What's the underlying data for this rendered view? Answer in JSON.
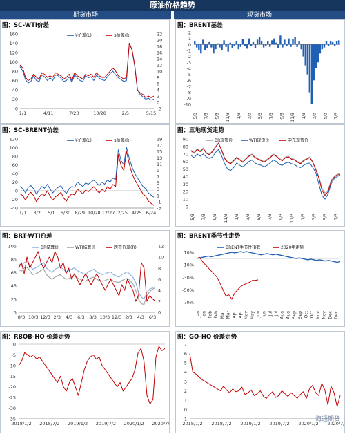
{
  "header": {
    "title": "原油价格趋势",
    "left_section": "期货市场",
    "right_section": "现货市场"
  },
  "watermark": "海通期货",
  "colors": {
    "red": "#c00000",
    "blue": "#1f5fb4",
    "navy": "#17365d",
    "gray": "#a6a6a6",
    "lightblue": "#8fb3e0",
    "darkred": "#7f0000"
  },
  "chart_data": [
    {
      "id": "sc-wti",
      "type": "line",
      "title": "图：SC-WTI价差",
      "legend": [
        "¥价差(L)",
        "$价差(R)"
      ],
      "x_ticks": [
        "1/1",
        "4/11",
        "7/20",
        "10/28",
        "2/5",
        "5/15"
      ],
      "y_left_ticks": [
        "0",
        "20",
        "40",
        "60",
        "80",
        "100",
        "120",
        "140",
        "160"
      ],
      "y_right_ticks": [
        "-2",
        "0",
        "2",
        "4",
        "6",
        "8",
        "10",
        "12",
        "14",
        "16",
        "18",
        "20",
        "22"
      ],
      "ylim_left": [
        0,
        160
      ],
      "ylim_right": [
        -2,
        22
      ],
      "series": [
        {
          "name": "¥价差(L)",
          "axis": "left",
          "values": [
            90,
            80,
            62,
            55,
            58,
            70,
            60,
            58,
            72,
            68,
            60,
            66,
            60,
            72,
            70,
            65,
            58,
            60,
            68,
            56,
            72,
            65,
            60,
            58,
            70,
            66,
            68,
            60,
            72,
            65,
            62,
            60,
            68,
            75,
            80,
            72,
            66,
            62,
            58,
            60,
            140,
            125,
            90,
            40,
            30,
            25,
            20,
            22,
            18,
            20
          ]
        },
        {
          "name": "$价差(R)",
          "axis": "right",
          "values": [
            12,
            11,
            8,
            7,
            7.5,
            9,
            8,
            7.5,
            9.5,
            9,
            8,
            8.5,
            8,
            9.5,
            9,
            8.5,
            7.5,
            8,
            9,
            7,
            9.5,
            8.5,
            8,
            7.5,
            9,
            8.5,
            9,
            8,
            9.5,
            8.5,
            8,
            8,
            9,
            10,
            11,
            10,
            8.5,
            8,
            7.5,
            8,
            19,
            17,
            12,
            4,
            3,
            2.5,
            1.5,
            2,
            1.5,
            2
          ]
        }
      ]
    },
    {
      "id": "brent-basis",
      "type": "bar",
      "title": "图：BRENT基差",
      "x_ticks": [
        "5/3",
        "7/3",
        "9/3",
        "11/3",
        "1/3",
        "3/3",
        "5/3",
        "7/3",
        "9/3",
        "11/3",
        "1/3",
        "3/3",
        "5/3",
        "7/3"
      ],
      "y_ticks": [
        "2",
        "1",
        "0",
        "-1",
        "-2",
        "-3",
        "-4",
        "-5",
        "-6",
        "-7",
        "-8",
        "-9",
        "-10"
      ],
      "ylim": [
        -10,
        2
      ],
      "values": [
        0.5,
        -0.5,
        -1,
        -1.5,
        0.8,
        -1,
        -0.6,
        0.4,
        -0.5,
        -1.5,
        -0.8,
        0.2,
        -0.5,
        -1,
        0.7,
        -0.4,
        -1.2,
        0.3,
        -0.6,
        -0.3,
        0.6,
        -0.8,
        -0.4,
        0.9,
        -0.2,
        -0.7,
        1.0,
        -0.3,
        0.4,
        -0.6,
        0.8,
        1.2,
        0.5,
        -0.5,
        -0.3,
        0.6,
        -0.4,
        0.7,
        1.0,
        0.3,
        -0.6,
        1.5,
        -0.5,
        0.8,
        -0.3,
        1.0,
        -0.4,
        0.9,
        1.3,
        -0.4,
        0.5,
        -0.8,
        -2,
        -3.5,
        -5,
        -8,
        -10,
        -6,
        -4,
        -3,
        -1.5,
        -0.8,
        -0.5,
        0.5,
        -0.3,
        0.6,
        0.4,
        -0.2,
        0.5,
        0.7
      ]
    },
    {
      "id": "sc-brent",
      "type": "line",
      "title": "图：SC-BRENT价差",
      "legend": [
        "¥价差(L)",
        "$价差(R)"
      ],
      "x_ticks": [
        "1/1",
        "3/2",
        "5/1",
        "6/30",
        "8/29",
        "10/28",
        "12/27",
        "2/25",
        "4/25",
        "6/24"
      ],
      "y_left_ticks": [
        "-40",
        "-20",
        "0",
        "20",
        "40",
        "60",
        "80",
        "100",
        "120"
      ],
      "y_right_ticks": [
        "-3",
        "-1",
        "1",
        "3",
        "5",
        "7",
        "9",
        "11",
        "13",
        "15",
        "17",
        "19"
      ],
      "ylim_left": [
        -40,
        120
      ],
      "ylim_right": [
        -3,
        19
      ],
      "series": [
        {
          "name": "¥价差(L)",
          "axis": "left",
          "values": [
            10,
            5,
            -5,
            8,
            12,
            5,
            -8,
            2,
            10,
            6,
            15,
            4,
            -5,
            3,
            8,
            12,
            0,
            -6,
            5,
            10,
            8,
            20,
            15,
            10,
            18,
            15,
            20,
            25,
            18,
            12,
            20,
            15,
            25,
            20,
            30,
            25,
            95,
            70,
            60,
            100,
            75,
            55,
            40,
            30,
            20,
            10,
            5,
            -5,
            -10,
            -15
          ]
        },
        {
          "name": "$价差(R)",
          "axis": "right",
          "values": [
            1.5,
            1,
            -0.5,
            1.2,
            2,
            1,
            -1,
            0.5,
            1.5,
            1,
            2.5,
            0.8,
            -0.5,
            0.6,
            1.2,
            2,
            0.2,
            -0.8,
            0.8,
            1.5,
            1.2,
            3,
            2.3,
            1.5,
            2.7,
            2.2,
            3,
            3.8,
            2.7,
            1.8,
            3,
            2.2,
            3.8,
            3,
            4.5,
            3.8,
            14,
            10.5,
            9,
            15,
            11,
            8,
            6,
            4.5,
            3,
            1.5,
            0.8,
            -0.8,
            -1.5,
            -2.2
          ]
        }
      ]
    },
    {
      "id": "three-spot",
      "type": "line",
      "title": "图：三地现货走势",
      "legend": [
        "BR现货价",
        "WTI现货价",
        "中东现货价"
      ],
      "x_ticks": [
        "5/3",
        "7/3",
        "9/3",
        "11/3",
        "1/3",
        "3/3",
        "5/3",
        "7/3",
        "9/3",
        "11/3",
        "1/3",
        "3/3",
        "5/3",
        "7/3"
      ],
      "y_ticks": [
        "0",
        "10",
        "20",
        "30",
        "40",
        "50",
        "60",
        "70",
        "80",
        "90"
      ],
      "ylim": [
        0,
        90
      ],
      "series": [
        {
          "name": "BR现货价",
          "values": [
            75,
            72,
            77,
            74,
            78,
            72,
            70,
            74,
            80,
            85,
            76,
            65,
            60,
            58,
            62,
            66,
            63,
            60,
            64,
            68,
            70,
            66,
            64,
            62,
            60,
            63,
            66,
            70,
            68,
            64,
            62,
            66,
            67,
            64,
            63,
            60,
            58,
            62,
            64,
            66,
            60,
            50,
            40,
            25,
            18,
            22,
            35,
            40,
            43,
            44
          ]
        },
        {
          "name": "WTI现货价",
          "values": [
            68,
            65,
            70,
            67,
            70,
            66,
            64,
            66,
            72,
            76,
            68,
            57,
            50,
            48,
            52,
            58,
            55,
            53,
            56,
            60,
            62,
            58,
            56,
            55,
            53,
            55,
            58,
            62,
            60,
            56,
            55,
            58,
            59,
            57,
            56,
            53,
            52,
            55,
            57,
            58,
            52,
            45,
            30,
            15,
            10,
            17,
            30,
            37,
            40,
            42
          ]
        },
        {
          "name": "中东现货价",
          "values": [
            74,
            71,
            76,
            73,
            77,
            71,
            69,
            73,
            79,
            84,
            75,
            64,
            59,
            57,
            61,
            65,
            62,
            59,
            63,
            67,
            69,
            65,
            63,
            61,
            59,
            62,
            65,
            69,
            67,
            63,
            61,
            65,
            66,
            63,
            62,
            59,
            57,
            61,
            63,
            65,
            59,
            49,
            38,
            22,
            15,
            20,
            33,
            39,
            42,
            43
          ]
        }
      ]
    },
    {
      "id": "brt-wti",
      "type": "line",
      "title": "图：BRT-WTI价差",
      "legend": [
        "BR结算价",
        "WTI结算价",
        "跨市价差(R)"
      ],
      "x_ticks": [
        "8/3",
        "10/3",
        "12/3",
        "2/3",
        "4/3",
        "6/3",
        "8/3",
        "10/3",
        "12/3",
        "2/3",
        "4/3",
        "6/3"
      ],
      "y_left_ticks": [
        "5",
        "25",
        "45",
        "65",
        "85",
        "105"
      ],
      "y_right_ticks": [
        "0",
        "2",
        "4",
        "6",
        "8",
        "10",
        "12"
      ],
      "ylim_left": [
        5,
        105
      ],
      "ylim_right": [
        0,
        12
      ],
      "series": [
        {
          "name": "BR结算价",
          "axis": "left",
          "values": [
            78,
            75,
            80,
            82,
            76,
            70,
            72,
            74,
            78,
            80,
            72,
            68,
            65,
            70,
            72,
            74,
            70,
            66,
            68,
            70,
            72,
            68,
            66,
            64,
            62,
            66,
            68,
            70,
            66,
            64,
            62,
            63,
            65,
            66,
            62,
            60,
            58,
            62,
            64,
            66,
            62,
            58,
            50,
            35,
            28,
            25,
            35,
            40,
            42,
            44
          ]
        },
        {
          "name": "WTI结算价",
          "axis": "left",
          "values": [
            70,
            67,
            72,
            73,
            68,
            62,
            63,
            65,
            68,
            70,
            62,
            58,
            55,
            58,
            60,
            62,
            58,
            55,
            56,
            58,
            60,
            57,
            55,
            53,
            52,
            55,
            57,
            58,
            55,
            53,
            52,
            53,
            55,
            56,
            52,
            51,
            50,
            53,
            55,
            56,
            53,
            48,
            38,
            25,
            18,
            17,
            30,
            36,
            40,
            42
          ]
        },
        {
          "name": "跨市价差(R)",
          "axis": "right",
          "values": [
            8,
            9,
            7,
            10,
            8,
            9,
            10,
            11,
            9,
            8,
            9,
            10,
            9,
            11,
            10,
            8,
            9,
            7,
            8,
            6,
            7,
            6,
            5,
            6,
            7,
            6,
            5,
            6,
            7,
            6,
            5,
            4,
            5,
            6,
            5,
            4,
            3,
            5,
            4,
            6,
            5,
            4,
            2,
            3,
            9,
            8,
            2,
            3,
            2.5,
            2
          ]
        }
      ]
    },
    {
      "id": "brent-seasonal",
      "type": "line",
      "title": "图：BRENT季节性走势",
      "legend": [
        "BRENT季节性指数",
        "2020年走势"
      ],
      "x_ticks": [
        "Jan",
        "Jan",
        "Feb",
        "Feb",
        "Mar",
        "Mar",
        "Apr",
        "Apr",
        "May",
        "May",
        "Jun",
        "Jun",
        "Jul",
        "Jul",
        "Aug",
        "Aug",
        "Sep",
        "Sep",
        "Oct",
        "Oct",
        "Nov",
        "Nov",
        "Dec",
        "Dec"
      ],
      "y_ticks": [
        "10%",
        "-10%",
        "-30%",
        "-50%",
        "-70%"
      ],
      "ylim": [
        -75,
        20
      ],
      "series": [
        {
          "name": "BRENT季节性指数",
          "values": [
            0,
            1,
            2,
            3,
            4,
            3,
            4,
            5,
            6,
            7,
            8,
            9,
            10,
            9,
            10,
            11,
            10,
            11,
            10,
            9,
            8,
            7,
            6,
            7,
            8,
            7,
            6,
            7,
            6,
            5,
            4,
            3,
            2,
            1,
            0,
            1,
            0,
            -1,
            -2,
            -1,
            -2,
            -3,
            -2,
            -3,
            -4,
            -3,
            -4,
            -5,
            -6,
            -5
          ]
        },
        {
          "name": "2020年走势",
          "values": [
            0,
            2,
            -5,
            -10,
            -15,
            -20,
            -25,
            -30,
            -40,
            -50,
            -60,
            -58,
            -65,
            -55,
            -50,
            -45,
            -42,
            -40,
            -38,
            -35,
            -35,
            -34
          ]
        }
      ]
    },
    {
      "id": "rbob-ho",
      "type": "line",
      "title": "图：RBOB-HO 价差走势",
      "x_ticks": [
        "2018/1/2",
        "2018/7/2",
        "2019/1/2",
        "2019/7/2",
        "2020/1/2",
        "2020/7/2"
      ],
      "y_ticks": [
        "0",
        "-5",
        "-10",
        "-15",
        "-20",
        "-25",
        "-30",
        "-35"
      ],
      "ylim": [
        -35,
        0
      ],
      "values": [
        -10,
        -8,
        -4,
        -5,
        -6,
        -5,
        -7,
        -6,
        -8,
        -10,
        -12,
        -14,
        -16,
        -18,
        -15,
        -20,
        -22,
        -18,
        -16,
        -20,
        -24,
        -18,
        -12,
        -8,
        -6,
        -5,
        -7,
        -6,
        -10,
        -12,
        -14,
        -16,
        -18,
        -20,
        -18,
        -22,
        -20,
        -18,
        -16,
        -12,
        -4,
        -2,
        -8,
        -24,
        -28,
        -26,
        -6,
        -1,
        -3,
        -2
      ]
    },
    {
      "id": "go-ho",
      "type": "line",
      "title": "图：GO-HO 价差走势",
      "x_ticks": [
        "2018/1/2",
        "2018/7/2",
        "2019/1/2",
        "2019/7/2",
        "2020/1/2",
        "2020/7/2"
      ],
      "y_ticks": [
        "-1",
        "0",
        "1",
        "2",
        "3",
        "4",
        "5",
        "6",
        "7"
      ],
      "ylim": [
        -1,
        7
      ],
      "values": [
        6,
        4,
        3.8,
        3.5,
        3.2,
        3,
        2.8,
        2.6,
        2.4,
        2.2,
        2,
        2.5,
        2.1,
        1.8,
        2.2,
        1.9,
        2,
        2.4,
        1.6,
        1.8,
        2.1,
        1.5,
        1.7,
        2,
        1.4,
        1.2,
        1.6,
        1.9,
        1.3,
        1.5,
        2,
        1.7,
        1.4,
        1.8,
        1.5,
        1.2,
        1.6,
        1.9,
        1.2,
        2.2,
        2.6,
        1.8,
        1.5,
        2.8,
        2.1,
        0.5,
        2.5,
        1.8,
        0.3,
        1.5
      ]
    }
  ]
}
